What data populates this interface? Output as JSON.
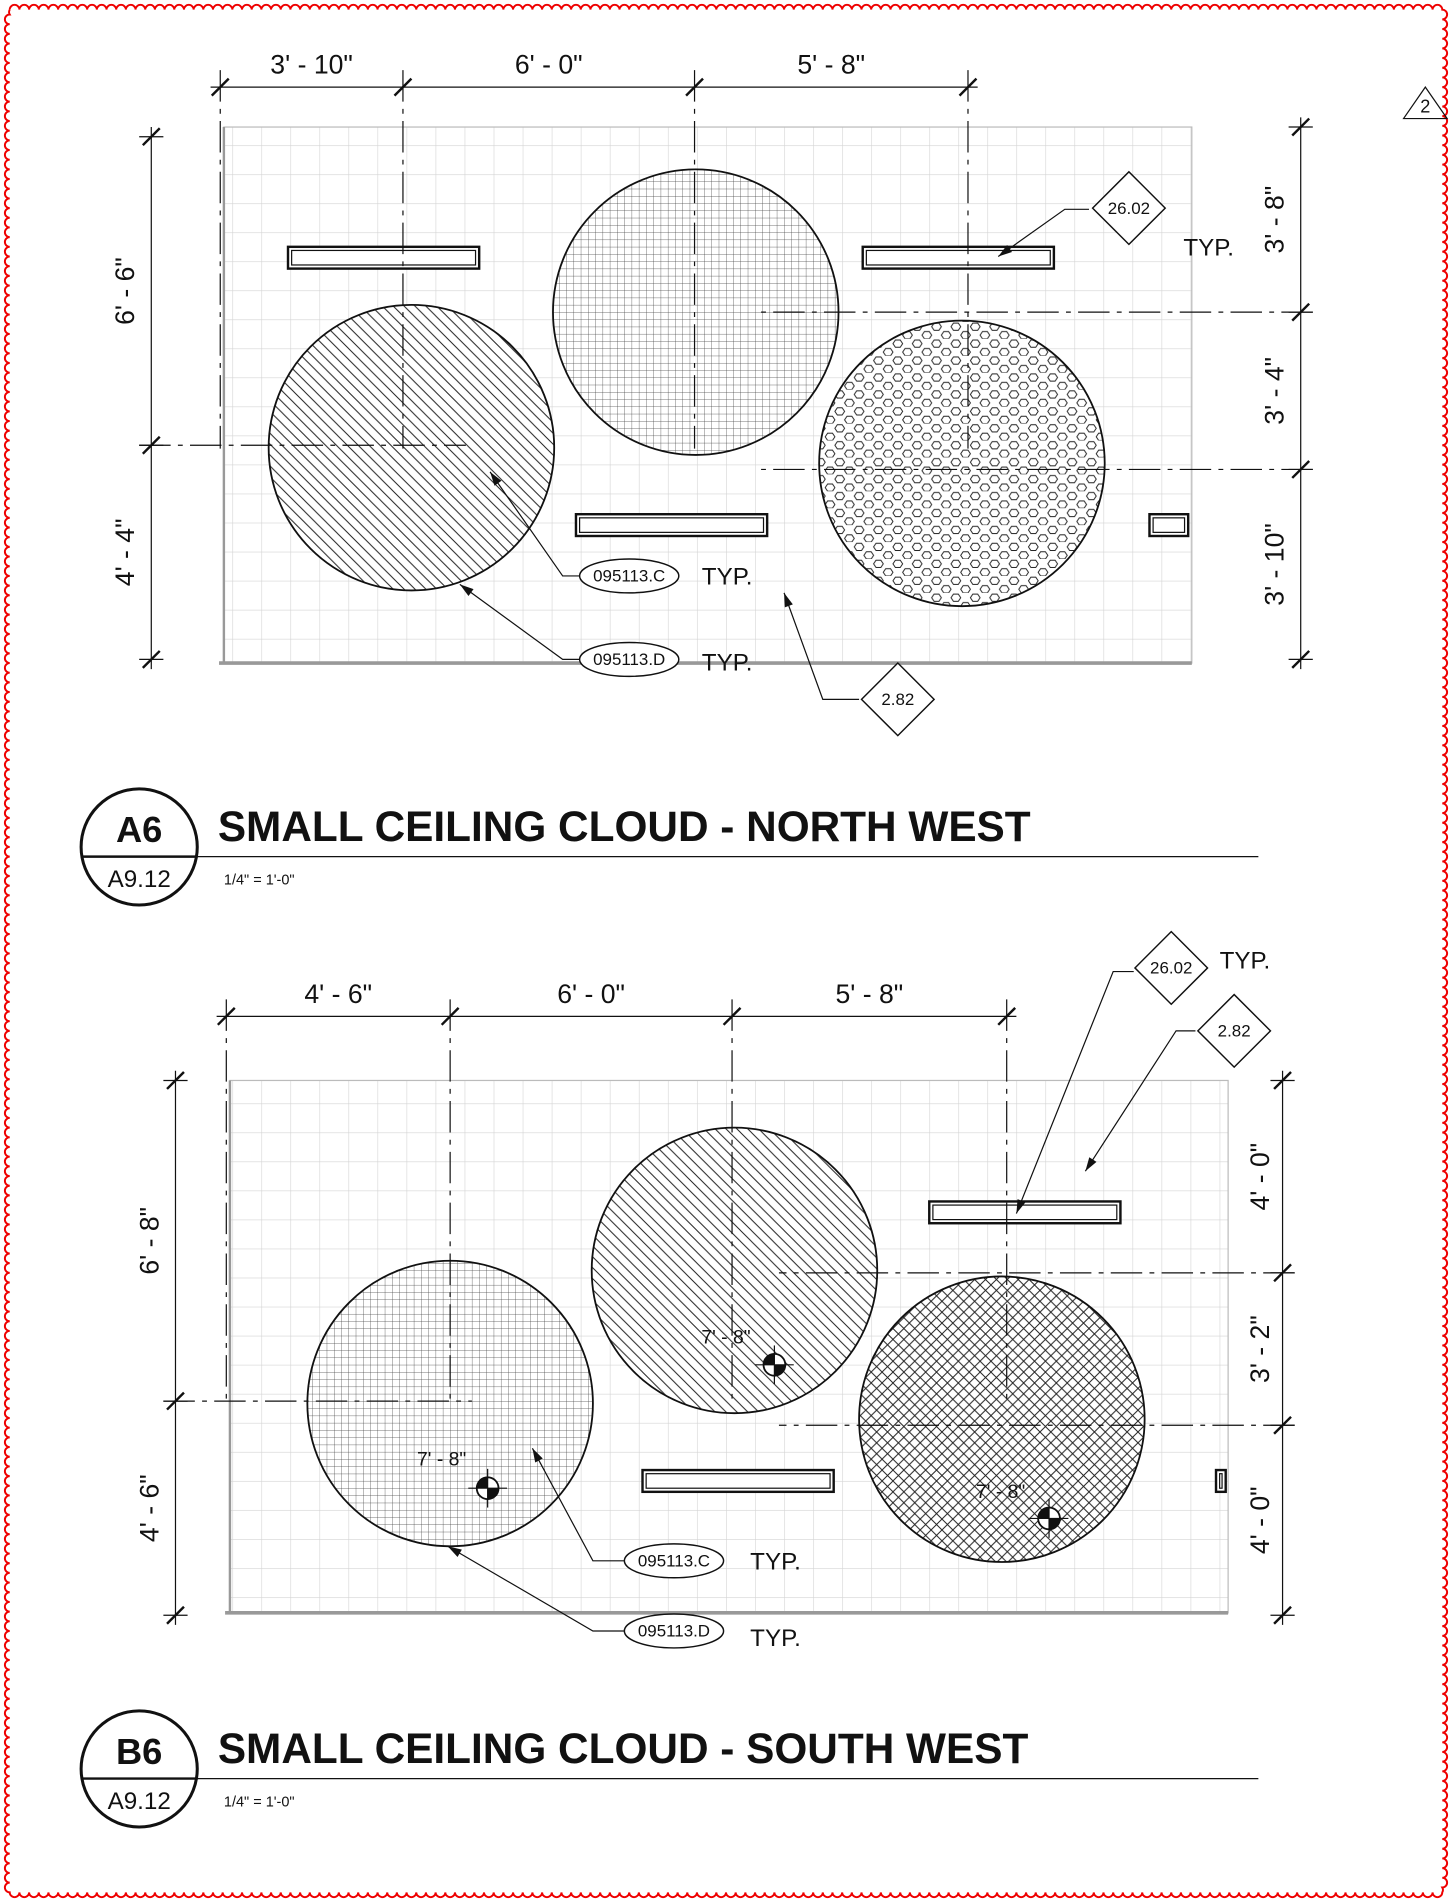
{
  "revision": "2",
  "views": [
    {
      "id": "A6",
      "sheet": "A9.12",
      "title": "SMALL CEILING CLOUD - NORTH WEST",
      "scale": "1/4\" = 1'-0\"",
      "dims_top": [
        "3' - 10\"",
        "6' - 0\"",
        "5' - 8\""
      ],
      "dims_left": [
        "6' - 6\"",
        "4' - 4\""
      ],
      "dims_right": [
        "3' - 8\"",
        "3' - 4\"",
        "3' - 10\""
      ],
      "tags": [
        {
          "code": "26.02",
          "note": "TYP."
        },
        {
          "code": "2.82"
        }
      ],
      "keynotes": [
        {
          "code": "095113.C",
          "note": "TYP."
        },
        {
          "code": "095113.D",
          "note": "TYP."
        }
      ],
      "heights": []
    },
    {
      "id": "B6",
      "sheet": "A9.12",
      "title": "SMALL CEILING CLOUD - SOUTH WEST",
      "scale": "1/4\" = 1'-0\"",
      "dims_top": [
        "4' - 6\"",
        "6' - 0\"",
        "5' - 8\""
      ],
      "dims_left": [
        "6' - 8\"",
        "4' - 6\""
      ],
      "dims_right": [
        "4' - 0\"",
        "3' - 2\"",
        "4' - 0\""
      ],
      "tags": [
        {
          "code": "26.02",
          "note": "TYP."
        },
        {
          "code": "2.82"
        }
      ],
      "keynotes": [
        {
          "code": "095113.C",
          "note": "TYP."
        },
        {
          "code": "095113.D",
          "note": "TYP."
        }
      ],
      "heights": [
        "7' - 8\"",
        "7' - 8\"",
        "7' - 8\""
      ]
    }
  ]
}
